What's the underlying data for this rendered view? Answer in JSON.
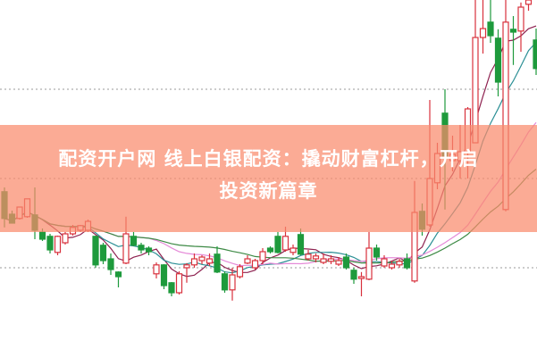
{
  "title": {
    "line1": "配资开户网 线上白银配资：撬动财富杠杆，开启",
    "line2": "投资新篇章"
  },
  "chart_data": {
    "type": "candlestick",
    "title": "",
    "xlabel": "",
    "ylabel": "",
    "ylim": [
      0,
      100
    ],
    "grid": "dotted horizontal",
    "colors": {
      "up": "#d8313c",
      "down": "#1e9a3c",
      "ma5": "#8e2250",
      "ma10": "#2b8f95",
      "ma20": "#e58ad8",
      "ma30": "#3d8a45",
      "banner": "#f98a6c"
    },
    "moving_averages": [
      5,
      10,
      20,
      30
    ],
    "ohlc_order": [
      "open",
      "high",
      "low",
      "close"
    ],
    "candles": [
      [
        46.3,
        47.5,
        36.3,
        38.8
      ],
      [
        40,
        41,
        37.5,
        37.5
      ],
      [
        38.8,
        42,
        38.5,
        42
      ],
      [
        39.3,
        44.3,
        39,
        44.3
      ],
      [
        39.8,
        47.5,
        33,
        35.5
      ],
      [
        35,
        36,
        32.5,
        33
      ],
      [
        33.8,
        34.5,
        29,
        30
      ],
      [
        29.3,
        34,
        28.5,
        33.8
      ],
      [
        32,
        35,
        31.5,
        34.5
      ],
      [
        34.5,
        37,
        34,
        36.3
      ],
      [
        35.5,
        37,
        35,
        36.8
      ],
      [
        35.5,
        38.5,
        35,
        38
      ],
      [
        33.8,
        34,
        25,
        25.8
      ],
      [
        31.3,
        32,
        26,
        27
      ],
      [
        27.5,
        29,
        23,
        24.5
      ],
      [
        23.8,
        24,
        19.5,
        22.5
      ],
      [
        26.3,
        39.3,
        26,
        34.5
      ],
      [
        33.8,
        35,
        31,
        31.3
      ],
      [
        31.3,
        32,
        29,
        30
      ],
      [
        30.5,
        31,
        28.5,
        29.5
      ],
      [
        23.3,
        26.5,
        22,
        25.8
      ],
      [
        25.8,
        26,
        19,
        20
      ],
      [
        20.8,
        21,
        17,
        18
      ],
      [
        18,
        24,
        17.5,
        23.3
      ],
      [
        25,
        26.3,
        20.8,
        25.8
      ],
      [
        25.8,
        29,
        25,
        27.5
      ],
      [
        27,
        28.5,
        26,
        28
      ],
      [
        26.3,
        29,
        25.5,
        27.5
      ],
      [
        28.8,
        31,
        23.5,
        23.8
      ],
      [
        23.3,
        24,
        18,
        18.8
      ],
      [
        18.8,
        25,
        15.8,
        23
      ],
      [
        22.5,
        26,
        22,
        25.3
      ],
      [
        26.3,
        28.5,
        26,
        27.5
      ],
      [
        25,
        27.5,
        24.5,
        27
      ],
      [
        27,
        30.5,
        26,
        29.5
      ],
      [
        30.5,
        31,
        29,
        29.5
      ],
      [
        33.8,
        35,
        29,
        29.3
      ],
      [
        30,
        36.5,
        29.5,
        33.8
      ],
      [
        29.3,
        31.5,
        28.5,
        30.5
      ],
      [
        34.3,
        36,
        28.5,
        28.8
      ],
      [
        27.5,
        30,
        27,
        28.8
      ],
      [
        27.5,
        29,
        26.5,
        28.3
      ],
      [
        26.5,
        29,
        26,
        27.5
      ],
      [
        26.8,
        28.5,
        26,
        27.5
      ],
      [
        26,
        28,
        25.5,
        27
      ],
      [
        28,
        29,
        24.5,
        25
      ],
      [
        24.3,
        25,
        20.5,
        21.8
      ],
      [
        22,
        23.8,
        17,
        22.5
      ],
      [
        21.8,
        35,
        21.5,
        30.5
      ],
      [
        30.5,
        31.5,
        27,
        28
      ],
      [
        25.5,
        28.5,
        25,
        27.5
      ],
      [
        25,
        27,
        24.5,
        26
      ],
      [
        25.8,
        27.5,
        25,
        26.8
      ],
      [
        27.5,
        29,
        24.5,
        25
      ],
      [
        21.3,
        49.3,
        20.8,
        40.5
      ],
      [
        40.8,
        43,
        34,
        35.8
      ],
      [
        37,
        72,
        36.5,
        50
      ],
      [
        48.8,
        60,
        47,
        57
      ],
      [
        68.3,
        75,
        41.3,
        56.3
      ],
      [
        55,
        62,
        52,
        56.8
      ],
      [
        55,
        65,
        50,
        57.5
      ],
      [
        57.5,
        70,
        50,
        69.5
      ],
      [
        60,
        100,
        60,
        89.5
      ],
      [
        89.5,
        100,
        85,
        92
      ],
      [
        93.8,
        100,
        88,
        90
      ],
      [
        89.3,
        91.8,
        73,
        77
      ],
      [
        41.3,
        100,
        40.8,
        93.8
      ],
      [
        91.8,
        95.5,
        81.8,
        91
      ],
      [
        91.3,
        99.3,
        85.5,
        98
      ],
      [
        98.8,
        100,
        97,
        100
      ],
      [
        88.8,
        92,
        79,
        80.8
      ]
    ],
    "gridlines": [
      25,
      50,
      75
    ]
  }
}
